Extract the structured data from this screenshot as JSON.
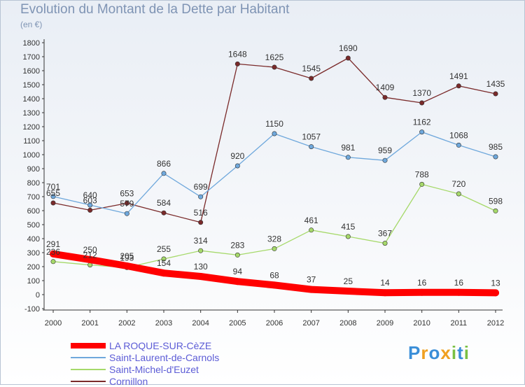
{
  "chart_data": {
    "type": "line",
    "title": "Evolution du Montant de la Dette par Habitant",
    "subtitle": "(en €)",
    "categories": [
      "2000",
      "2001",
      "2002",
      "2003",
      "2004",
      "2005",
      "2006",
      "2007",
      "2008",
      "2009",
      "2010",
      "2011",
      "2012"
    ],
    "ylim": [
      -100,
      1800
    ],
    "yticks": [
      -100,
      0,
      100,
      200,
      300,
      400,
      500,
      600,
      700,
      800,
      900,
      1000,
      1100,
      1200,
      1300,
      1400,
      1500,
      1600,
      1700,
      1800
    ],
    "grid": false,
    "legend_position": "bottom-left",
    "series": [
      {
        "name": "LA ROQUE-SUR-CèZE",
        "color": "#ff0000",
        "values": [
          291,
          250,
          205,
          154,
          130,
          94,
          68,
          37,
          25,
          14,
          16,
          16,
          13
        ]
      },
      {
        "name": "Saint-Laurent-de-Carnols",
        "color": "#6fa8dc",
        "values": [
          701,
          640,
          579,
          866,
          699,
          920,
          1150,
          1057,
          981,
          959,
          1162,
          1068,
          985
        ]
      },
      {
        "name": "Saint-Michel-d'Euzet",
        "color": "#a6d96a",
        "values": [
          236,
          212,
          193,
          255,
          314,
          283,
          328,
          461,
          415,
          367,
          788,
          720,
          598
        ]
      },
      {
        "name": "Cornillon",
        "color": "#7a2a2a",
        "values": [
          655,
          603,
          653,
          584,
          516,
          1648,
          1625,
          1545,
          1690,
          1409,
          1370,
          1491,
          1435
        ]
      }
    ]
  },
  "logo": {
    "letters": [
      "P",
      "r",
      "o",
      "x",
      "i",
      "t",
      "i"
    ],
    "colors": [
      "#3a8ed8",
      "#f0a020",
      "#3a8ed8",
      "#f0a020",
      "#7ac043",
      "#3a8ed8",
      "#7ac043"
    ]
  }
}
